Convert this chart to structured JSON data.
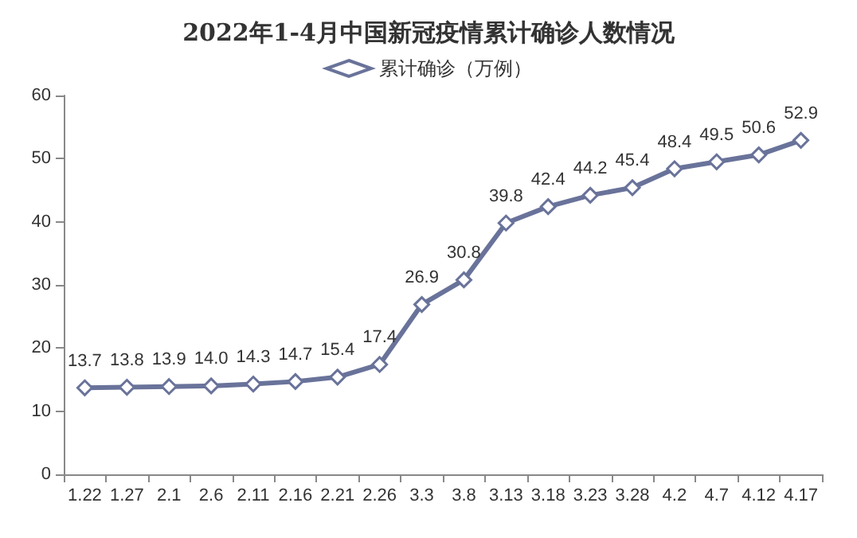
{
  "chart_data": {
    "type": "line",
    "title": "2022年1-4月中国新冠疫情累计确诊人数情况",
    "categories": [
      "1.22",
      "1.27",
      "2.1",
      "2.6",
      "2.11",
      "2.16",
      "2.21",
      "2.26",
      "3.3",
      "3.8",
      "3.13",
      "3.18",
      "3.23",
      "3.28",
      "4.2",
      "4.7",
      "4.12",
      "4.17"
    ],
    "series": [
      {
        "name": "累计确诊（万例）",
        "color": "#69739a",
        "values": [
          13.7,
          13.8,
          13.9,
          14.0,
          14.3,
          14.7,
          15.4,
          17.4,
          26.9,
          30.8,
          39.8,
          42.4,
          44.2,
          45.4,
          48.4,
          49.5,
          50.6,
          52.9
        ],
        "value_labels": [
          "13.7",
          "13.8",
          "13.9",
          "14.0",
          "14.3",
          "14.7",
          "15.4",
          "17.4",
          "26.9",
          "30.8",
          "39.8",
          "42.4",
          "44.2",
          "45.4",
          "48.4",
          "49.5",
          "50.6",
          "52.9"
        ]
      }
    ],
    "ylim": [
      0,
      60
    ],
    "yticks": [
      0,
      10,
      20,
      30,
      40,
      50,
      60
    ],
    "grid": false,
    "legend": "top",
    "marker": "diamond",
    "line_style": "solid"
  }
}
